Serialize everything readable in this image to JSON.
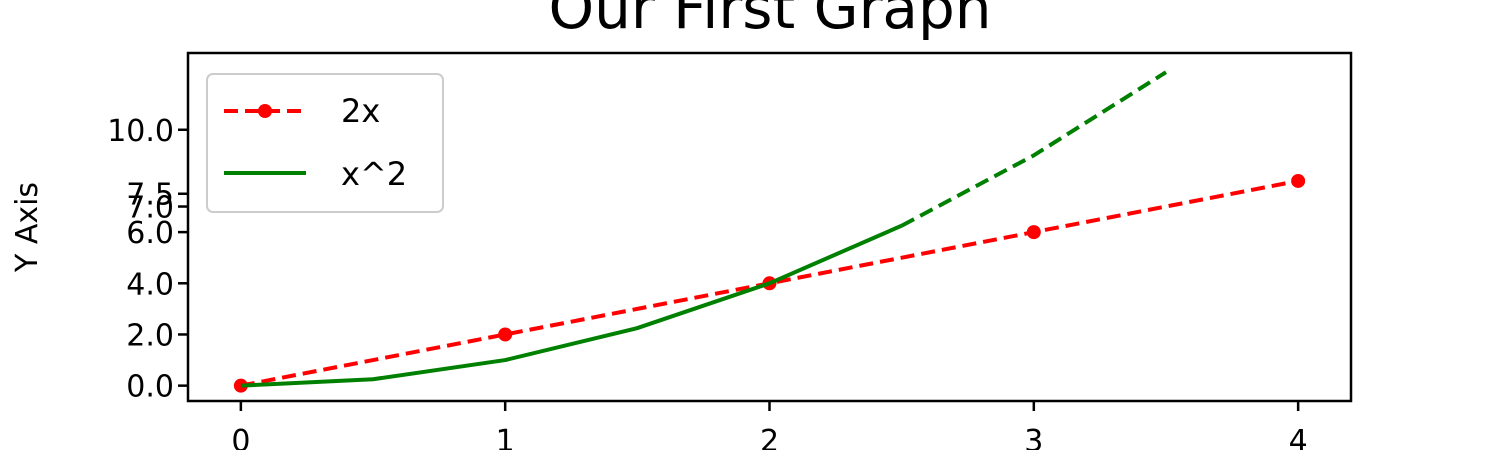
{
  "chart_data": {
    "type": "line",
    "title": "Our First Graph",
    "xlabel": "",
    "ylabel": "Y Axis",
    "xlim": [
      -0.2,
      4.2
    ],
    "ylim": [
      -0.6,
      13.0
    ],
    "xticks": [
      0,
      1,
      2,
      3,
      4
    ],
    "xtick_labels": [
      "0",
      "1",
      "2",
      "3",
      "4"
    ],
    "yticks": [
      0,
      2,
      4,
      6,
      7,
      7.5,
      10
    ],
    "ytick_labels": [
      "0.0",
      "2.0",
      "4.0",
      "6.0",
      "7.0",
      "7.5",
      "10.0"
    ],
    "grid": false,
    "legend_position": "upper-left",
    "series": [
      {
        "name": "2x",
        "color": "#ff0000",
        "line_style": "dashed",
        "marker": "circle",
        "x": [
          0,
          1,
          2,
          3,
          4
        ],
        "y": [
          0,
          2,
          4,
          6,
          8
        ]
      },
      {
        "name": "x^2",
        "color": "#008000",
        "line_style": "solid",
        "x": [
          0,
          0.5,
          1,
          1.5,
          2,
          2.5
        ],
        "y": [
          0,
          0.25,
          1,
          2.25,
          4,
          6.25
        ]
      },
      {
        "name": "",
        "color": "#008000",
        "line_style": "dashed",
        "x": [
          2.5,
          3,
          3.5
        ],
        "y": [
          6.25,
          9,
          12.25
        ]
      }
    ]
  }
}
